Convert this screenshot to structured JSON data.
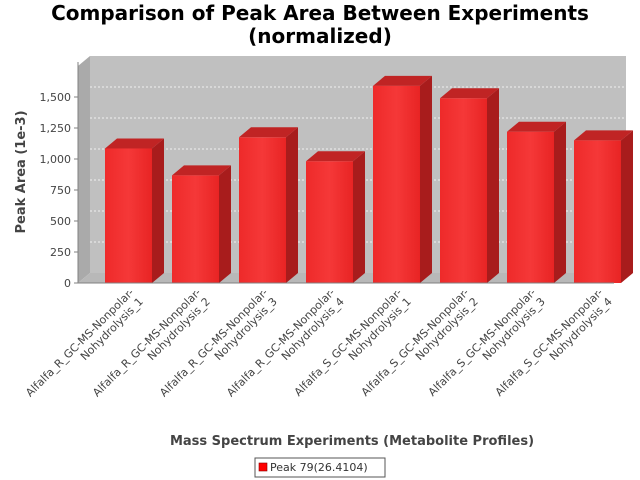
{
  "chart_data": {
    "type": "bar",
    "title_lines": [
      "Comparison of Peak Area Between Experiments",
      "(normalized)"
    ],
    "xlabel": "Mass Spectrum Experiments (Metabolite Profiles)",
    "ylabel": "Peak Area (1e-3)",
    "ylim": [
      0,
      1750
    ],
    "yticks": [
      0,
      250,
      500,
      750,
      1000,
      1250,
      1500
    ],
    "ytick_labels": [
      "0",
      "250",
      "500",
      "750",
      "1,000",
      "1,250",
      "1,500"
    ],
    "grid": true,
    "legend_placement": "bottom",
    "categories": [
      [
        "Alfalfa_R_GC-MS-Nonpolar-",
        "Nohydrolysis_1"
      ],
      [
        "Alfalfa_R_GC-MS-Nonpolar-",
        "Nohydrolysis_2"
      ],
      [
        "Alfalfa_R_GC-MS-Nonpolar-",
        "Nohydrolysis_3"
      ],
      [
        "Alfalfa_R_GC-MS-Nonpolar-",
        "Nohydrolysis_4"
      ],
      [
        "Alfalfa_S_GC-MS-Nonpolar-",
        "Nohydrolysis_1"
      ],
      [
        "Alfalfa_S_GC-MS-Nonpolar-",
        "Nohydrolysis_2"
      ],
      [
        "Alfalfa_S_GC-MS-Nonpolar-",
        "Nohydrolysis_3"
      ],
      [
        "Alfalfa_S_GC-MS-Nonpolar-",
        "Nohydrolysis_4"
      ]
    ],
    "series": [
      {
        "name": "Peak 79(26.4104)",
        "color": "#ff0000",
        "values": [
          1085,
          868,
          1175,
          982,
          1590,
          1490,
          1220,
          1150
        ]
      }
    ]
  }
}
